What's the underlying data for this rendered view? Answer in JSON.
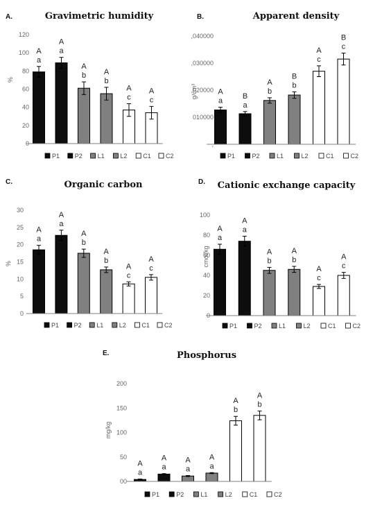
{
  "legend_labels": [
    "P1",
    "P2",
    "L1",
    "L2",
    "C1",
    "C2"
  ],
  "colors": {
    "P1": "#0d0d0d",
    "P2": "#0d0d0d",
    "L1": "#808080",
    "L2": "#808080",
    "C1": "#ffffff",
    "C2": "#ffffff",
    "outline": "#000000",
    "axis": "#7f7f7f"
  },
  "chart_data": [
    {
      "type": "bar",
      "panel": "A.",
      "title": "Gravimetric humidity",
      "ylabel": "%",
      "ylim": [
        0,
        120
      ],
      "ytick_labels": [
        "0",
        "20",
        "40",
        "60",
        "80",
        "100",
        "120"
      ],
      "categories": [
        "P1",
        "P2",
        "L1",
        "L2",
        "C1",
        "C2"
      ],
      "values": [
        79,
        89,
        61,
        55,
        37,
        34
      ],
      "errors": [
        6,
        6,
        7,
        7,
        7,
        7
      ],
      "sig_upper": [
        "A",
        "A",
        "A",
        "A",
        "A",
        "A"
      ],
      "sig_lower": [
        "a",
        "a",
        "b",
        "b",
        "c",
        "c"
      ]
    },
    {
      "type": "bar",
      "panel": "B.",
      "title": "Apparent density",
      "ylabel": "g/cm³",
      "ylim": [
        0,
        0.04
      ],
      "ytick_labels": [
        ",",
        "010000",
        ",020000",
        ",030000",
        ",040000"
      ],
      "categories": [
        "P1",
        "P2",
        "L1",
        "L2",
        "C1",
        "C2"
      ],
      "values": [
        0.0127,
        0.0113,
        0.0162,
        0.0182,
        0.027,
        0.0315
      ],
      "errors": [
        0.001,
        0.0008,
        0.001,
        0.0012,
        0.002,
        0.0022
      ],
      "sig_upper": [
        "A",
        "B",
        "A",
        "B",
        "A",
        "B"
      ],
      "sig_lower": [
        "a",
        "a",
        "b",
        "b",
        "c",
        "c"
      ]
    },
    {
      "type": "bar",
      "panel": "C.",
      "title": "Organic carbon",
      "ylabel": "%",
      "ylim": [
        0,
        30
      ],
      "ytick_labels": [
        "0",
        "5",
        "10",
        "15",
        "20",
        "25",
        "30"
      ],
      "categories": [
        "P1",
        "P2",
        "L1",
        "L2",
        "C1",
        "C2"
      ],
      "values": [
        18.5,
        22.7,
        17.5,
        12.7,
        8.6,
        10.5
      ],
      "errors": [
        1.3,
        1.5,
        1.2,
        0.8,
        0.6,
        0.8
      ],
      "sig_upper": [
        "A",
        "A",
        "A",
        "A",
        "A",
        "A"
      ],
      "sig_lower": [
        "a",
        "a",
        "b",
        "b",
        "c",
        "c"
      ]
    },
    {
      "type": "bar",
      "panel": "D.",
      "title": "Cationic exchange capacity",
      "ylabel": "cmol/kg",
      "ylim": [
        0,
        100
      ],
      "ytick_labels": [
        "0",
        "20",
        "40",
        "60",
        "80",
        "100"
      ],
      "categories": [
        "P1",
        "P2",
        "L1",
        "L2",
        "C1",
        "C2"
      ],
      "values": [
        66,
        74,
        45,
        46,
        29,
        40
      ],
      "errors": [
        5,
        5,
        3,
        3,
        2,
        3
      ],
      "sig_upper": [
        "A",
        "A",
        "A",
        "A",
        "A",
        "A"
      ],
      "sig_lower": [
        "a",
        "a",
        "b",
        "b",
        "c",
        "c"
      ]
    },
    {
      "type": "bar",
      "panel": "E.",
      "title": "Phosphorus",
      "ylabel": "mg/kg",
      "ylim": [
        0,
        200
      ],
      "ytick_labels": [
        "00",
        "50",
        "100",
        "150",
        "200"
      ],
      "categories": [
        "P1",
        "P2",
        "L1",
        "L2",
        "C1",
        "C2"
      ],
      "values": [
        4,
        15,
        11,
        17,
        124,
        135
      ],
      "errors": [
        1,
        1,
        1,
        1,
        9,
        9
      ],
      "sig_upper": [
        "A",
        "A",
        "A",
        "A",
        "A",
        "A"
      ],
      "sig_lower": [
        "a",
        "a",
        "a",
        "a",
        "b",
        "b"
      ]
    }
  ]
}
